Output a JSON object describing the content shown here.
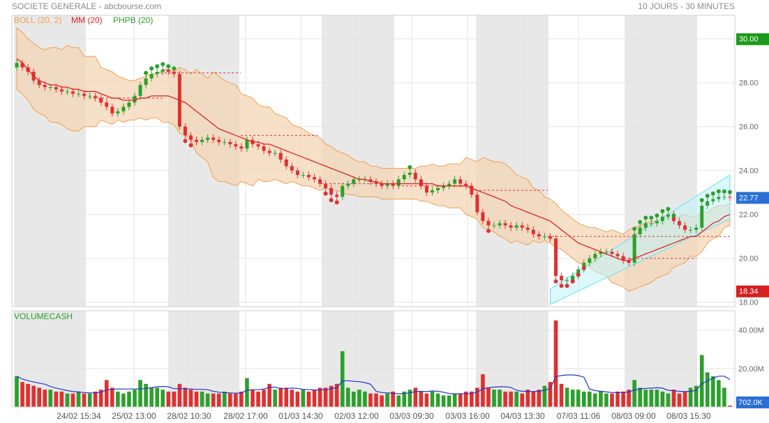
{
  "header": {
    "title": "SOCIETE GENERALE - abcbourse.com",
    "period": "10 JOURS - 30 MINUTES"
  },
  "legend": {
    "boll": "BOLL (20, 2)",
    "mm": "MM (20)",
    "phpb": "PHPB (20)",
    "volume": "VOLUMECASH"
  },
  "colors": {
    "up": "#2ca02c",
    "down": "#e03030",
    "ma": "#dd2222",
    "boll_line": "#f0a050",
    "boll_fill": "#f3d6b6",
    "shade": "#e8e8e8",
    "channel": "#66e0ee",
    "vol_avg": "#2233cc",
    "grid": "#e4e4e4"
  },
  "price_axis": {
    "ticks": [
      "30.00",
      "28.00",
      "26.00",
      "24.00",
      "22.00",
      "20.00",
      "18.00"
    ],
    "current": "22.77",
    "high_label": "30.00",
    "low_label": "18.34"
  },
  "volume_axis": {
    "ticks": [
      "40.00M",
      "20.00M"
    ],
    "current": "702.0K"
  },
  "x_labels": [
    "24/02 15:34",
    "25/02 13:00",
    "28/02 10:30",
    "28/02 17:00",
    "01/03 14:30",
    "02/03 12:00",
    "03/03 09:30",
    "03/03 16:00",
    "04/03 13:30",
    "07/03 11:06",
    "08/03 09:00",
    "08/03 15:30"
  ],
  "chart_data": {
    "type": "candlestick",
    "x_labels": [
      "24/02 15:34",
      "25/02 13:00",
      "28/02 10:30",
      "28/02 17:00",
      "01/03 14:30",
      "02/03 12:00",
      "03/03 09:30",
      "03/03 16:00",
      "04/03 13:30",
      "07/03 11:06",
      "08/03 09:00",
      "08/03 15:30"
    ],
    "price_range": [
      17.8,
      30.5
    ],
    "volume_range": [
      0,
      50
    ],
    "volume_unit": "M",
    "last_price": 22.77,
    "period_high": 30.0,
    "period_low": 18.34,
    "last_volume": "702.0K",
    "close": [
      28.9,
      28.7,
      28.5,
      28.1,
      27.9,
      27.8,
      27.8,
      27.7,
      27.6,
      27.6,
      27.5,
      27.5,
      27.4,
      27.4,
      27.3,
      27.1,
      26.9,
      26.6,
      26.7,
      26.9,
      27.1,
      27.4,
      27.9,
      28.2,
      28.4,
      28.5,
      28.6,
      28.5,
      28.4,
      26.0,
      25.6,
      25.4,
      25.3,
      25.4,
      25.5,
      25.4,
      25.3,
      25.3,
      25.2,
      25.1,
      25.0,
      25.4,
      25.2,
      25.1,
      24.9,
      24.8,
      24.8,
      24.5,
      24.2,
      24.0,
      23.8,
      23.8,
      23.7,
      23.6,
      23.4,
      23.2,
      22.9,
      22.8,
      23.3,
      23.4,
      23.6,
      23.6,
      23.6,
      23.5,
      23.4,
      23.3,
      23.4,
      23.3,
      23.6,
      23.8,
      23.9,
      23.6,
      23.3,
      23.0,
      23.1,
      23.2,
      23.3,
      23.4,
      23.6,
      23.4,
      23.3,
      22.9,
      22.1,
      21.7,
      21.5,
      21.5,
      21.6,
      21.5,
      21.4,
      21.5,
      21.4,
      21.3,
      21.1,
      21.0,
      21.0,
      20.9,
      19.2,
      19.0,
      19.0,
      19.2,
      19.5,
      19.8,
      20.0,
      20.2,
      20.3,
      20.3,
      20.2,
      20.1,
      19.9,
      19.8,
      21.1,
      21.4,
      21.6,
      21.6,
      21.7,
      21.9,
      22.0,
      21.7,
      21.5,
      21.3,
      21.3,
      21.4,
      22.4,
      22.6,
      22.7,
      22.8,
      22.8,
      22.77
    ],
    "volume": [
      16,
      13,
      12,
      11,
      10,
      9,
      9,
      8,
      8,
      7,
      7,
      8,
      7,
      7,
      8,
      9,
      14,
      10,
      8,
      7,
      8,
      9,
      14,
      12,
      10,
      10,
      9,
      8,
      8,
      12,
      10,
      9,
      8,
      8,
      7,
      7,
      7,
      8,
      7,
      7,
      8,
      15,
      9,
      8,
      9,
      12,
      9,
      10,
      10,
      9,
      8,
      9,
      8,
      9,
      10,
      10,
      11,
      12,
      29,
      10,
      8,
      9,
      8,
      7,
      7,
      6,
      7,
      8,
      6,
      8,
      9,
      10,
      8,
      7,
      8,
      7,
      6,
      6,
      7,
      7,
      8,
      8,
      10,
      17,
      10,
      9,
      9,
      8,
      8,
      8,
      7,
      9,
      8,
      9,
      11,
      13,
      45,
      12,
      10,
      9,
      9,
      8,
      8,
      7,
      8,
      7,
      7,
      8,
      8,
      9,
      14,
      10,
      9,
      9,
      9,
      8,
      7,
      9,
      7,
      8,
      10,
      11,
      27,
      18,
      16,
      14,
      10,
      0.7
    ],
    "ma20": [
      29.1,
      28.9,
      28.6,
      28.3,
      28.1,
      28.0,
      27.9,
      27.9,
      27.8,
      27.8,
      27.7,
      27.7,
      27.6,
      27.6,
      27.6,
      27.5,
      27.4,
      27.3,
      27.3,
      27.2,
      27.2,
      27.2,
      27.3,
      27.3,
      27.4,
      27.4,
      27.4,
      27.4,
      27.3,
      27.2,
      27.1,
      26.9,
      26.7,
      26.5,
      26.3,
      26.1,
      25.9,
      25.8,
      25.7,
      25.6,
      25.5,
      25.4,
      25.3,
      25.3,
      25.2,
      25.2,
      25.1,
      25.0,
      24.9,
      24.8,
      24.7,
      24.6,
      24.5,
      24.4,
      24.3,
      24.2,
      24.1,
      24.0,
      23.9,
      23.8,
      23.7,
      23.6,
      23.6,
      23.5,
      23.5,
      23.4,
      23.4,
      23.4,
      23.4,
      23.4,
      23.4,
      23.4,
      23.4,
      23.4,
      23.4,
      23.3,
      23.3,
      23.3,
      23.3,
      23.3,
      23.3,
      23.2,
      23.1,
      23.0,
      22.9,
      22.8,
      22.7,
      22.6,
      22.4,
      22.3,
      22.2,
      22.1,
      22.0,
      21.9,
      21.8,
      21.7,
      21.5,
      21.3,
      21.1,
      20.9,
      20.7,
      20.6,
      20.5,
      20.4,
      20.3,
      20.2,
      20.1,
      20.0,
      19.9,
      19.9,
      20.0,
      20.1,
      20.2,
      20.3,
      20.4,
      20.5,
      20.6,
      20.7,
      20.8,
      20.9,
      21.0,
      21.0,
      21.2,
      21.4,
      21.6,
      21.7,
      21.9,
      22.0
    ]
  }
}
